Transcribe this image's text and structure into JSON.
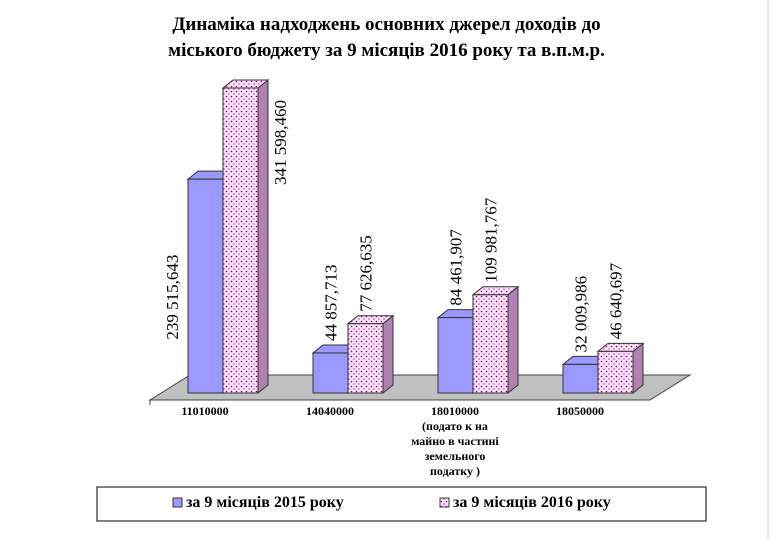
{
  "chart_data": {
    "type": "bar3d",
    "title": "Динаміка надходжень основних джерел доходів до\nміського бюджету  за  9 місяців  2016  року та в.п.м.р.",
    "categories": [
      "11010000",
      "14040000",
      "18010000\n(подато к на\nмайно в частині\nземельного\nподатку )",
      "18050000"
    ],
    "series": [
      {
        "name": "за 9 місяців  2015 року",
        "color": "#9999ff",
        "values": [
          239515.643,
          44857.713,
          84461.907,
          32009.986
        ],
        "value_labels": [
          "239 515,643",
          "44 857,713",
          "84 461,907",
          "32 009,986"
        ]
      },
      {
        "name": "за 9 місяців  2016 року",
        "color": "#ffccff",
        "values": [
          341598.46,
          77626.635,
          109981.767,
          46640.697
        ],
        "value_labels": [
          "341 598,460",
          "77 626,635",
          "109 981,767",
          "46 640,697"
        ]
      }
    ]
  }
}
